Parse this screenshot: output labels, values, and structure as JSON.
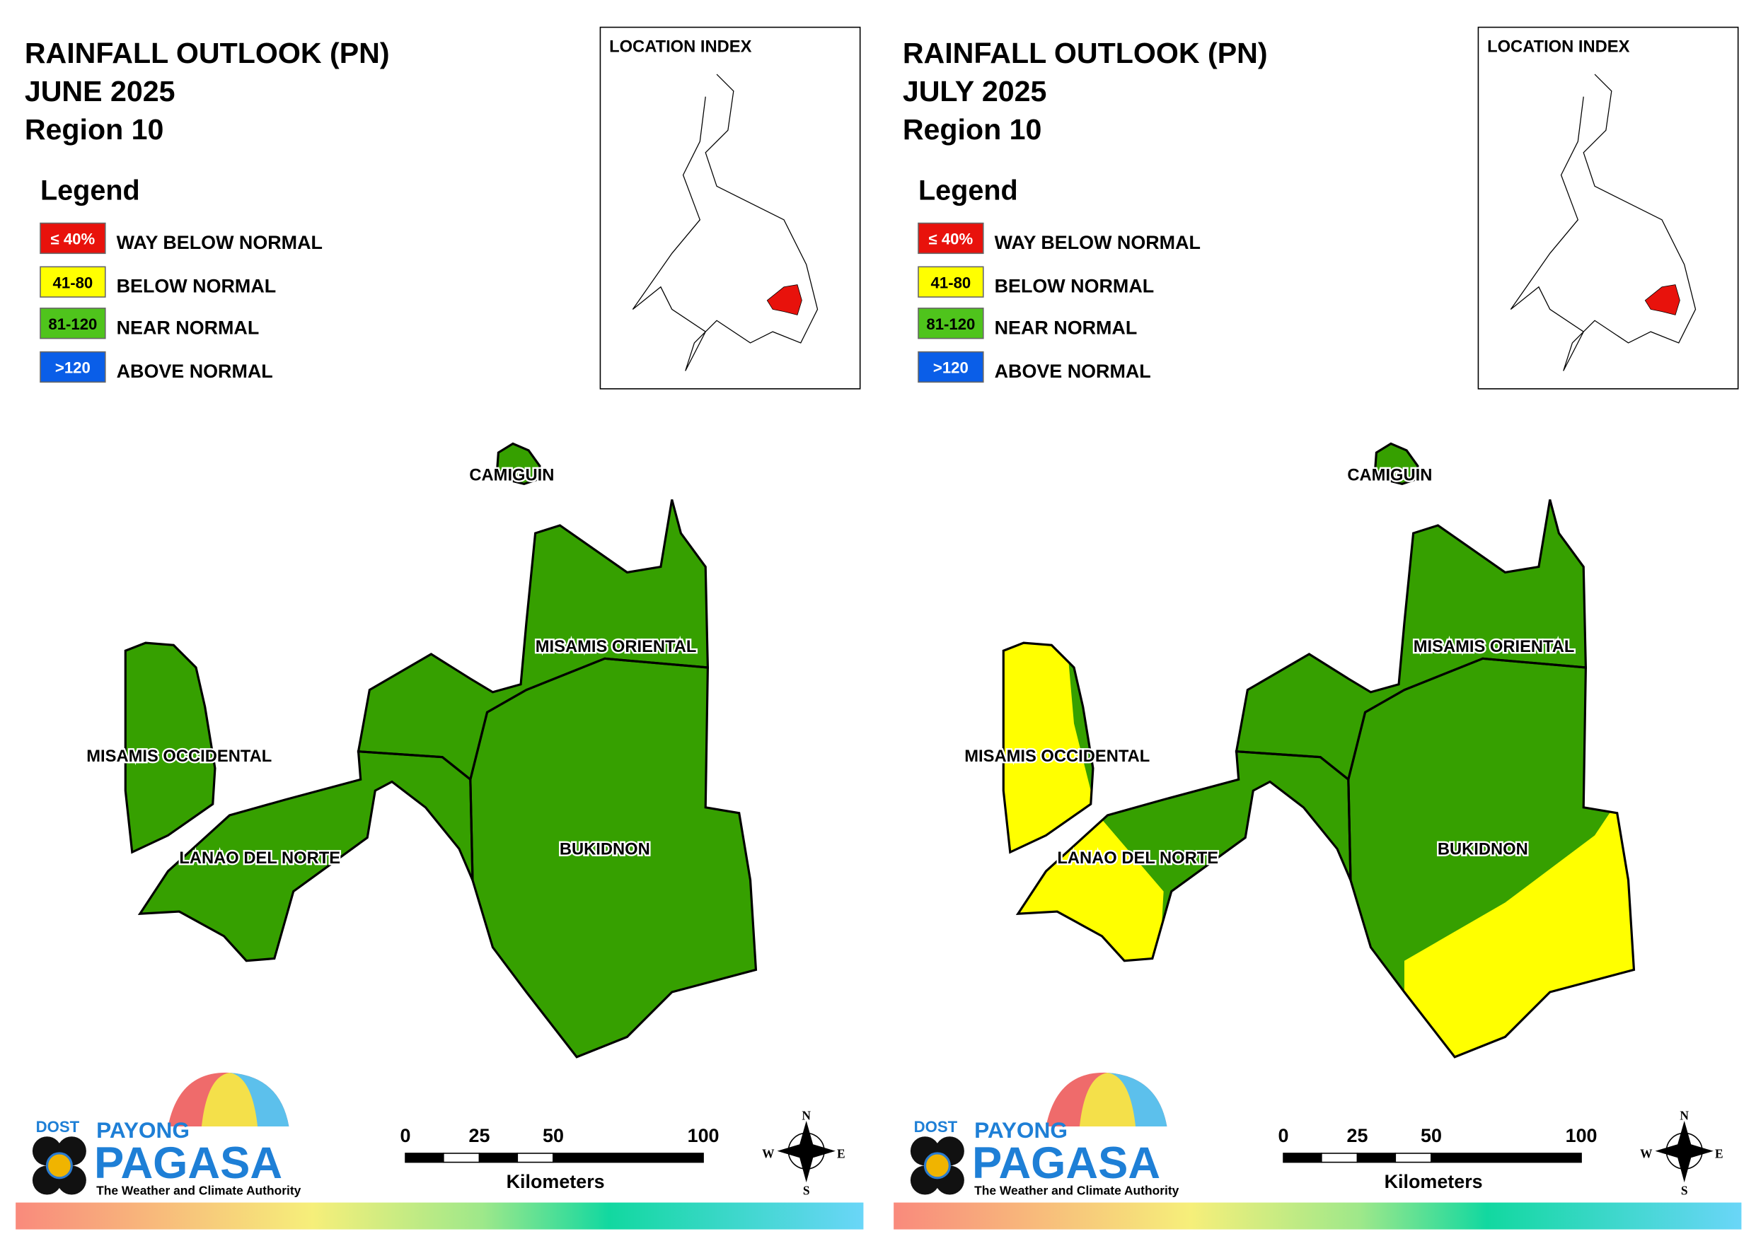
{
  "panels": [
    {
      "title": [
        "RAINFALL OUTLOOK (PN)",
        "JUNE 2025",
        "Region 10"
      ],
      "legend": {
        "title": "Legend",
        "items": [
          {
            "swatch": "≤ 40%",
            "label": "WAY BELOW NORMAL",
            "color": "#e8120c"
          },
          {
            "swatch": "41-80",
            "label": "BELOW NORMAL",
            "color": "#ffff00"
          },
          {
            "swatch": "81-120",
            "label": "NEAR NORMAL",
            "color": "#4fc41c"
          },
          {
            "swatch": ">120",
            "label": "ABOVE NORMAL",
            "color": "#0a5ee8"
          }
        ]
      },
      "location_index": "LOCATION INDEX",
      "provinces": [
        "CAMIGUIN",
        "MISAMIS ORIENTAL",
        "MISAMIS OCCIDENTAL",
        "LANAO DEL NORTE",
        "BUKIDNON"
      ],
      "scale": {
        "ticks": [
          "0",
          "25",
          "50",
          "100"
        ],
        "unit": "Kilometers"
      },
      "compass": [
        "N",
        "E",
        "S",
        "W"
      ],
      "logo": {
        "dost": "DOST",
        "payong": "PAYONG",
        "pagasa": "PAGASA",
        "tagline": "The Weather and Climate Authority"
      }
    },
    {
      "title": [
        "RAINFALL OUTLOOK (PN)",
        "JULY 2025",
        "Region 10"
      ],
      "legend": {
        "title": "Legend",
        "items": [
          {
            "swatch": "≤ 40%",
            "label": "WAY BELOW NORMAL",
            "color": "#e8120c"
          },
          {
            "swatch": "41-80",
            "label": "BELOW NORMAL",
            "color": "#ffff00"
          },
          {
            "swatch": "81-120",
            "label": "NEAR NORMAL",
            "color": "#4fc41c"
          },
          {
            "swatch": ">120",
            "label": "ABOVE NORMAL",
            "color": "#0a5ee8"
          }
        ]
      },
      "location_index": "LOCATION INDEX",
      "provinces": [
        "CAMIGUIN",
        "MISAMIS ORIENTAL",
        "MISAMIS OCCIDENTAL",
        "LANAO DEL NORTE",
        "BUKIDNON"
      ],
      "scale": {
        "ticks": [
          "0",
          "25",
          "50",
          "100"
        ],
        "unit": "Kilometers"
      },
      "compass": [
        "N",
        "E",
        "S",
        "W"
      ],
      "logo": {
        "dost": "DOST",
        "payong": "PAYONG",
        "pagasa": "PAGASA",
        "tagline": "The Weather and Climate Authority"
      }
    }
  ]
}
